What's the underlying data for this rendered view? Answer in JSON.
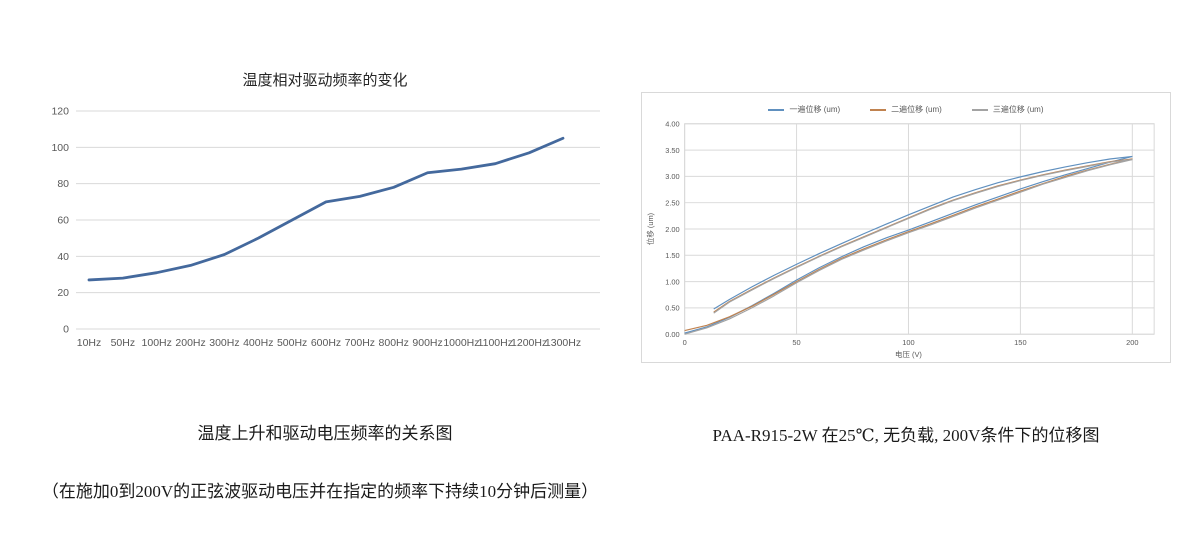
{
  "page": {
    "background": "#ffffff"
  },
  "left_chart": {
    "title": "温度相对驱动频率的变化",
    "caption": "温度上升和驱动电压频率的关系图",
    "note": "（在施加0到200V的正弦波驱动电压并在指定的频率下持续10分钟后测量）"
  },
  "right_chart": {
    "caption": "PAA-R915-2W 在25℃, 无负载, 200V条件下的位移图"
  },
  "chart_data": [
    {
      "type": "line",
      "title": "温度相对驱动频率的变化",
      "categories": [
        "10Hz",
        "50Hz",
        "100Hz",
        "200Hz",
        "300Hz",
        "400Hz",
        "500Hz",
        "600Hz",
        "700Hz",
        "800Hz",
        "900Hz",
        "1000Hz",
        "1100Hz",
        "1200Hz",
        "1300Hz"
      ],
      "values": [
        27,
        28,
        31,
        35,
        41,
        50,
        60,
        70,
        73,
        78,
        86,
        88,
        91,
        97,
        105
      ],
      "xlabel": "",
      "ylabel": "",
      "ylim": [
        0,
        120
      ],
      "ytick_step": 20,
      "grid": true,
      "legend_position": "none",
      "line_color": "#44699d",
      "grid_color": "#d9d9d9",
      "tick_color": "#595959"
    },
    {
      "type": "line",
      "title": "",
      "xlabel": "电压 (V)",
      "ylabel": "位移 (um)",
      "xlim": [
        0,
        210
      ],
      "xticks": [
        0,
        50,
        100,
        150,
        200
      ],
      "ylim": [
        0,
        4.0
      ],
      "ytick_step": 0.5,
      "grid": true,
      "legend_position": "top-center",
      "grid_color": "#d9d9d9",
      "series": [
        {
          "name": "一遍位移 (um)",
          "color": "#6090bf",
          "up_x": [
            0,
            10,
            20,
            30,
            40,
            50,
            60,
            70,
            80,
            90,
            100,
            110,
            120,
            130,
            140,
            150,
            160,
            170,
            180,
            190,
            200
          ],
          "up_y": [
            0.02,
            0.14,
            0.32,
            0.54,
            0.78,
            1.03,
            1.26,
            1.47,
            1.66,
            1.83,
            1.98,
            2.14,
            2.3,
            2.46,
            2.61,
            2.76,
            2.9,
            3.03,
            3.15,
            3.27,
            3.38
          ],
          "down_x": [
            200,
            190,
            180,
            170,
            160,
            150,
            140,
            130,
            120,
            110,
            100,
            90,
            80,
            70,
            60,
            50,
            40,
            30,
            20,
            13
          ],
          "down_y": [
            3.38,
            3.33,
            3.26,
            3.18,
            3.09,
            2.99,
            2.88,
            2.75,
            2.61,
            2.44,
            2.27,
            2.09,
            1.91,
            1.72,
            1.53,
            1.33,
            1.12,
            0.9,
            0.66,
            0.48
          ]
        },
        {
          "name": "二遍位移 (um)",
          "color": "#c0824f",
          "up_x": [
            0,
            10,
            20,
            30,
            40,
            50,
            60,
            70,
            80,
            90,
            100,
            110,
            120,
            130,
            140,
            150,
            160,
            170,
            180,
            190,
            200
          ],
          "up_y": [
            0.07,
            0.17,
            0.33,
            0.53,
            0.76,
            1.0,
            1.23,
            1.44,
            1.62,
            1.79,
            1.95,
            2.1,
            2.26,
            2.42,
            2.57,
            2.72,
            2.86,
            3.0,
            3.12,
            3.23,
            3.33
          ],
          "down_x": [
            200,
            190,
            180,
            170,
            160,
            150,
            140,
            130,
            120,
            110,
            100,
            90,
            80,
            70,
            60,
            50,
            40,
            30,
            20,
            13
          ],
          "down_y": [
            3.33,
            3.28,
            3.2,
            3.12,
            3.03,
            2.93,
            2.82,
            2.69,
            2.55,
            2.39,
            2.21,
            2.03,
            1.85,
            1.67,
            1.48,
            1.28,
            1.07,
            0.85,
            0.62,
            0.42
          ]
        },
        {
          "name": "三遍位移 (um)",
          "color": "#a3a3a3",
          "up_x": [
            0,
            10,
            20,
            30,
            40,
            50,
            60,
            70,
            80,
            90,
            100,
            110,
            120,
            130,
            140,
            150,
            160,
            170,
            180,
            190,
            200
          ],
          "up_y": [
            0.0,
            0.12,
            0.29,
            0.5,
            0.73,
            0.98,
            1.21,
            1.42,
            1.6,
            1.77,
            1.93,
            2.08,
            2.24,
            2.4,
            2.55,
            2.7,
            2.85,
            2.98,
            3.11,
            3.22,
            3.32
          ],
          "down_x": [
            200,
            190,
            180,
            170,
            160,
            150,
            140,
            130,
            120,
            110,
            100,
            90,
            80,
            70,
            60,
            50,
            40,
            30,
            20,
            13
          ],
          "down_y": [
            3.32,
            3.27,
            3.19,
            3.11,
            3.02,
            2.92,
            2.81,
            2.68,
            2.54,
            2.38,
            2.2,
            2.02,
            1.84,
            1.66,
            1.47,
            1.27,
            1.06,
            0.84,
            0.61,
            0.4
          ]
        }
      ]
    }
  ]
}
